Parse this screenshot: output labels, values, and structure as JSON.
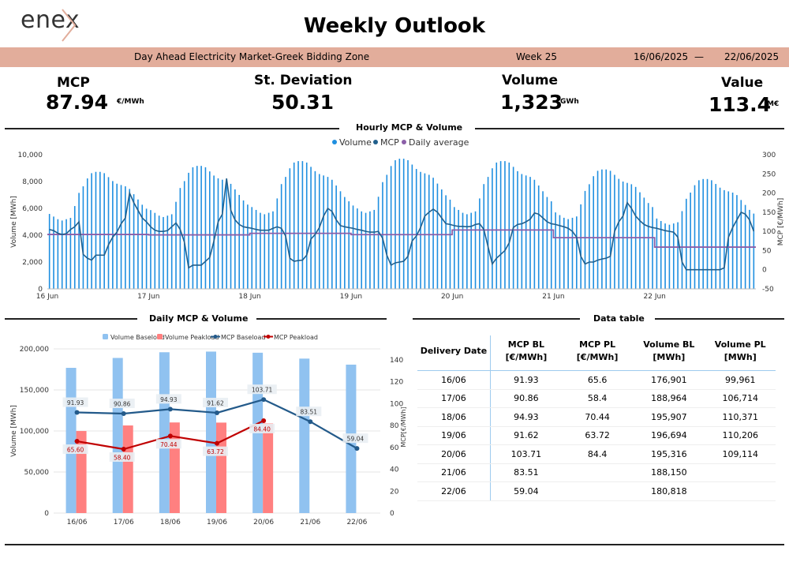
{
  "header": {
    "logo_text": "enex",
    "title": "Weekly Outlook"
  },
  "banner": {
    "market": "Day Ahead Electricity Market-Greek Bidding Zone",
    "week": "Week 25",
    "date_from": "16/06/2025",
    "separator": "—",
    "date_to": "22/06/2025"
  },
  "kpis": {
    "mcp": {
      "label": "MCP",
      "value": "87.94",
      "unit": "€/MWh"
    },
    "std": {
      "label": "St. Deviation",
      "value": "50.31"
    },
    "volume": {
      "label": "Volume",
      "value": "1,323",
      "unit": "GWh"
    },
    "value": {
      "label": "Value",
      "value": "113.4",
      "unit": "M€"
    }
  },
  "sections": {
    "hourly": "Hourly MCP & Volume",
    "daily": "Daily MCP & Volume",
    "table": "Data table"
  },
  "colors": {
    "volume_hourly": "#1f8fe0",
    "mcp_line": "#215f8c",
    "daily_avg": "#8b5fa8",
    "volume_baseload": "#90c2f0",
    "volume_peakload": "#ff8080",
    "mcp_baseload": "#235a8a",
    "mcp_peakload": "#c00000",
    "banner": "#e2ad9b"
  },
  "chart_data": [
    {
      "type": "bar",
      "title": "Hourly MCP & Volume",
      "legend": [
        "Volume",
        "MCP",
        "Daily average"
      ],
      "legend_position": "top",
      "ylabel": "Volume [MWh]",
      "y2label": "MCP [€/MWh]",
      "ylim": [
        0,
        10000
      ],
      "y_ticks": [
        0,
        2000,
        4000,
        6000,
        8000,
        10000
      ],
      "y_tick_labels": [
        "0",
        "2,000",
        "4,000",
        "6,000",
        "8,000",
        "10,000"
      ],
      "y2lim": [
        -50,
        300
      ],
      "y2_ticks": [
        -50,
        0,
        50,
        100,
        150,
        200,
        250,
        300
      ],
      "y2_tick_labels": [
        "-50",
        "0",
        "50",
        "100",
        "150",
        "200",
        "250",
        "300"
      ],
      "day_labels": [
        "16 Jun",
        "17 Jun",
        "18 Jun",
        "19 Jun",
        "20 Jun",
        "21 Jun",
        "22 Jun"
      ],
      "volume_day_template": [
        5700,
        5500,
        5300,
        5200,
        5300,
        5400,
        6300,
        7300,
        7800,
        8400,
        8800,
        8900,
        8900,
        8800,
        8500,
        8200,
        8000,
        7900,
        7800,
        7600,
        7200,
        6800,
        6400,
        6100
      ],
      "volume_day_scale": [
        0.98,
        1.03,
        1.07,
        1.09,
        1.07,
        1.0,
        0.92
      ],
      "mcp_hourly": [
        [
          105,
          102,
          95,
          92,
          94,
          105,
          112,
          125,
          40,
          30,
          25,
          38,
          38,
          38,
          65,
          85,
          98,
          120,
          135,
          200,
          175,
          155,
          135,
          125
        ],
        [
          112,
          103,
          100,
          100,
          102,
          112,
          122,
          105,
          72,
          5,
          12,
          12,
          12,
          22,
          32,
          75,
          125,
          145,
          238,
          155,
          130,
          118,
          112,
          110
        ],
        [
          108,
          105,
          103,
          103,
          103,
          108,
          112,
          108,
          88,
          30,
          22,
          24,
          25,
          38,
          80,
          92,
          110,
          140,
          160,
          152,
          130,
          115,
          112,
          110
        ],
        [
          108,
          105,
          103,
          100,
          98,
          98,
          100,
          82,
          38,
          12,
          18,
          20,
          22,
          35,
          75,
          88,
          110,
          140,
          150,
          158,
          150,
          135,
          120,
          118
        ],
        [
          115,
          113,
          113,
          112,
          113,
          118,
          120,
          105,
          60,
          15,
          30,
          40,
          50,
          70,
          110,
          118,
          120,
          125,
          132,
          148,
          145,
          135,
          125,
          120
        ],
        [
          118,
          115,
          112,
          108,
          100,
          85,
          35,
          15,
          20,
          20,
          25,
          28,
          30,
          35,
          100,
          125,
          140,
          175,
          160,
          140,
          128,
          118,
          113,
          110
        ],
        [
          108,
          105,
          102,
          100,
          98,
          85,
          20,
          0,
          0,
          0,
          0,
          0,
          0,
          0,
          0,
          0,
          5,
          85,
          110,
          130,
          150,
          145,
          130,
          100
        ]
      ],
      "daily_average": [
        91.93,
        90.86,
        94.93,
        91.62,
        103.71,
        83.51,
        59.04
      ]
    },
    {
      "type": "bar",
      "title": "Daily MCP & Volume",
      "legend": [
        "Volume Baseload",
        "Volume Peakload",
        "MCP Baseload",
        "MCP Peakload"
      ],
      "legend_position": "top",
      "categories": [
        "16/06",
        "17/06",
        "18/06",
        "19/06",
        "20/06",
        "21/06",
        "22/06"
      ],
      "series": [
        {
          "name": "Volume Baseload",
          "axis": "left",
          "values": [
            176901,
            188964,
            195907,
            196694,
            195316,
            188150,
            180818
          ]
        },
        {
          "name": "Volume Peakload",
          "axis": "left",
          "values": [
            99961,
            106714,
            110371,
            110206,
            109114,
            null,
            null
          ]
        },
        {
          "name": "MCP Baseload",
          "axis": "right",
          "values": [
            91.93,
            90.86,
            94.93,
            91.62,
            103.71,
            83.51,
            59.04
          ]
        },
        {
          "name": "MCP Peakload",
          "axis": "right",
          "values": [
            65.6,
            58.4,
            70.44,
            63.72,
            84.4,
            null,
            null
          ]
        }
      ],
      "mcp_bl_labels": [
        "91.93",
        "90.86",
        "94.93",
        "91.62",
        "103.71",
        "83.51",
        "59.04"
      ],
      "mcp_pl_labels": [
        "65.60",
        "58.40",
        "70.44",
        "63.72",
        "84.40"
      ],
      "ylabel": "Volume [MWh]",
      "y2label": "MCP[€/MWh]",
      "ylim": [
        0,
        200000
      ],
      "y_ticks": [
        0,
        50000,
        100000,
        150000,
        200000
      ],
      "y_tick_labels": [
        "0",
        "50,000",
        "100,000",
        "150,000",
        "200,000"
      ],
      "y2lim": [
        0,
        150
      ],
      "y2_ticks": [
        0,
        20,
        40,
        60,
        80,
        100,
        120,
        140
      ],
      "y2_tick_labels": [
        "0",
        "20",
        "40",
        "60",
        "80",
        "100",
        "120",
        "140"
      ]
    }
  ],
  "table": {
    "headers": [
      [
        "Delivery Date",
        ""
      ],
      [
        "MCP BL",
        "[€/MWh]"
      ],
      [
        "MCP PL",
        "[€/MWh]"
      ],
      [
        "Volume BL",
        "[MWh]"
      ],
      [
        "Volume PL",
        "[MWh]"
      ]
    ],
    "rows": [
      [
        "16/06",
        "91.93",
        "65.6",
        "176,901",
        "99,961"
      ],
      [
        "17/06",
        "90.86",
        "58.4",
        "188,964",
        "106,714"
      ],
      [
        "18/06",
        "94.93",
        "70.44",
        "195,907",
        "110,371"
      ],
      [
        "19/06",
        "91.62",
        "63.72",
        "196,694",
        "110,206"
      ],
      [
        "20/06",
        "103.71",
        "84.4",
        "195,316",
        "109,114"
      ],
      [
        "21/06",
        "83.51",
        "",
        "188,150",
        ""
      ],
      [
        "22/06",
        "59.04",
        "",
        "180,818",
        ""
      ]
    ]
  }
}
